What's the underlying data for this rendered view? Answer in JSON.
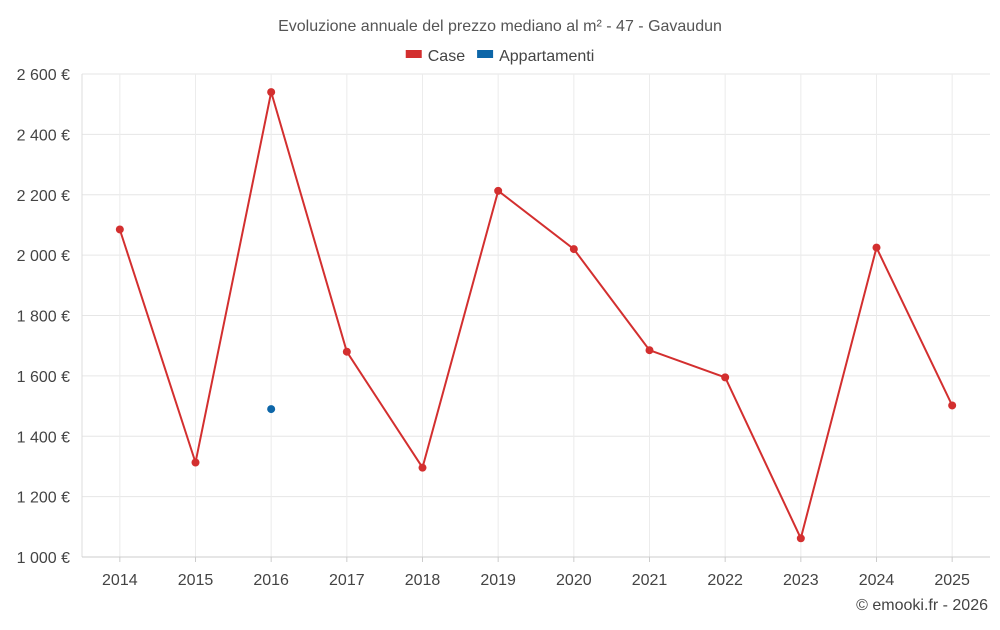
{
  "chart_data": {
    "type": "line",
    "title": "Evoluzione annuale del prezzo mediano al m² - 47 - Gavaudun",
    "categories": [
      "2014",
      "2015",
      "2016",
      "2017",
      "2018",
      "2019",
      "2020",
      "2021",
      "2022",
      "2023",
      "2024",
      "2025"
    ],
    "series": [
      {
        "name": "Case",
        "color": "#d32f2f",
        "values": [
          2085,
          1313,
          2540,
          1680,
          1296,
          2213,
          2020,
          1685,
          1595,
          1062,
          2025,
          1502
        ]
      },
      {
        "name": "Appartamenti",
        "color": "#0d66a8",
        "values": [
          null,
          null,
          1490,
          null,
          null,
          null,
          null,
          null,
          null,
          null,
          null,
          null
        ]
      }
    ],
    "ylim": [
      1000,
      2600
    ],
    "yticks": [
      1000,
      1200,
      1400,
      1600,
      1800,
      2000,
      2200,
      2400,
      2600
    ],
    "ytick_labels": [
      "1 000 €",
      "1 200 €",
      "1 400 €",
      "1 600 €",
      "1 800 €",
      "2 000 €",
      "2 200 €",
      "2 400 €",
      "2 600 €"
    ],
    "xlabel": "",
    "ylabel": "",
    "legend": "top-center",
    "grid": true
  },
  "credit": "© emooki.fr - 2026"
}
